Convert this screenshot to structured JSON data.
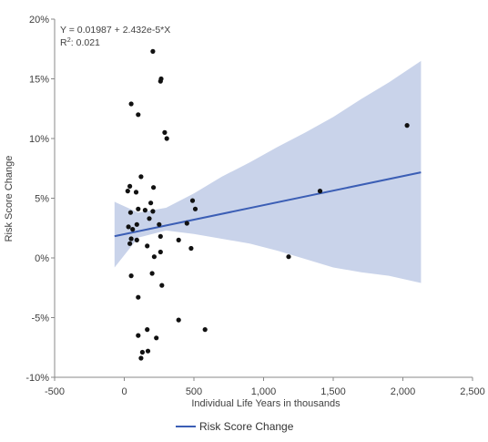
{
  "chart_data": {
    "type": "scatter",
    "title": "",
    "xlabel": "Individual Life Years in thousands",
    "ylabel": "Risk Score Change",
    "xlim": [
      -500,
      2500
    ],
    "ylim": [
      -10,
      20
    ],
    "x_ticks": [
      -500,
      0,
      500,
      1000,
      1500,
      2000,
      2500
    ],
    "x_tick_labels": [
      "-500",
      "0",
      "500",
      "1,000",
      "1,500",
      "2,000",
      "2,500"
    ],
    "y_ticks": [
      -10,
      -5,
      0,
      5,
      10,
      15,
      20
    ],
    "y_tick_labels": [
      "-10%",
      "-5%",
      "0%",
      "5%",
      "10%",
      "15%",
      "20%"
    ],
    "grid": false,
    "legend": {
      "position": "bottom-left",
      "entries": [
        "Risk Score Change"
      ]
    },
    "annotation": {
      "equation": "Y = 0.01987 + 2.432e-5*X",
      "r2_prefix": "R",
      "r2_sup": "2",
      "r2_value": ": 0.021"
    },
    "colors": {
      "points": "#111111",
      "fit_line": "#3b5eb5",
      "confidence_band": "#c9d3ea",
      "axis": "#888888"
    },
    "fit_line": {
      "x": [
        -70,
        2130
      ],
      "y": [
        1.817,
        7.167
      ]
    },
    "confidence_band": {
      "x": [
        -70,
        100,
        300,
        500,
        700,
        900,
        1100,
        1300,
        1500,
        1700,
        1900,
        2130
      ],
      "upper": [
        4.7,
        3.8,
        4.2,
        5.4,
        6.8,
        8.0,
        9.3,
        10.5,
        11.8,
        13.3,
        14.7,
        16.5
      ],
      "lower": [
        -0.8,
        1.7,
        2.3,
        2.0,
        1.6,
        1.2,
        0.6,
        -0.1,
        -0.8,
        -1.2,
        -1.5,
        -2.1
      ]
    },
    "series": [
      {
        "name": "Risk Score Change",
        "points": [
          [
            205,
            17.3
          ],
          [
            260,
            14.8
          ],
          [
            265,
            15.0
          ],
          [
            50,
            12.9
          ],
          [
            100,
            12.0
          ],
          [
            290,
            10.5
          ],
          [
            305,
            10.0
          ],
          [
            2030,
            11.1
          ],
          [
            120,
            6.8
          ],
          [
            40,
            6.0
          ],
          [
            25,
            5.6
          ],
          [
            85,
            5.5
          ],
          [
            210,
            5.9
          ],
          [
            490,
            4.8
          ],
          [
            1405,
            5.6
          ],
          [
            190,
            4.6
          ],
          [
            510,
            4.1
          ],
          [
            100,
            4.1
          ],
          [
            45,
            3.8
          ],
          [
            150,
            4.0
          ],
          [
            205,
            3.9
          ],
          [
            180,
            3.3
          ],
          [
            450,
            2.9
          ],
          [
            250,
            2.8
          ],
          [
            90,
            2.8
          ],
          [
            30,
            2.6
          ],
          [
            60,
            2.4
          ],
          [
            50,
            1.6
          ],
          [
            90,
            1.5
          ],
          [
            40,
            1.2
          ],
          [
            260,
            1.8
          ],
          [
            390,
            1.5
          ],
          [
            165,
            1.0
          ],
          [
            480,
            0.8
          ],
          [
            260,
            0.5
          ],
          [
            215,
            0.1
          ],
          [
            1180,
            0.1
          ],
          [
            50,
            -1.5
          ],
          [
            200,
            -1.3
          ],
          [
            270,
            -2.3
          ],
          [
            100,
            -3.3
          ],
          [
            390,
            -5.2
          ],
          [
            580,
            -6.0
          ],
          [
            165,
            -6.0
          ],
          [
            100,
            -6.5
          ],
          [
            230,
            -6.7
          ],
          [
            130,
            -7.9
          ],
          [
            170,
            -7.8
          ],
          [
            120,
            -8.4
          ]
        ]
      }
    ]
  }
}
